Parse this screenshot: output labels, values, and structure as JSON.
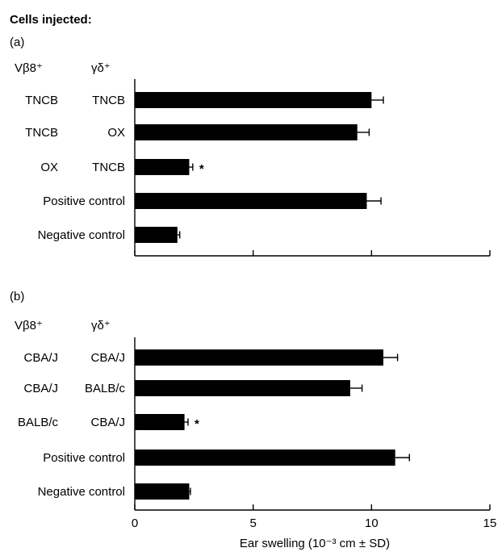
{
  "header": "Cells injected:",
  "colors": {
    "bar": "#000000",
    "axis": "#000000",
    "background": "#ffffff"
  },
  "chart_data": [
    {
      "type": "bar",
      "orientation": "horizontal",
      "panel": "(a)",
      "group_headers": [
        "Vβ8⁺",
        "γδ⁺"
      ],
      "categories": [
        [
          "TNCB",
          "TNCB"
        ],
        [
          "TNCB",
          "OX"
        ],
        [
          "OX",
          "TNCB"
        ],
        [
          "Positive control"
        ],
        [
          "Negative control"
        ]
      ],
      "values": [
        10.0,
        9.4,
        2.3,
        9.8,
        1.8
      ],
      "errors": [
        0.5,
        0.5,
        0.15,
        0.6,
        0.1
      ],
      "significance": [
        "",
        "",
        "*",
        "",
        ""
      ],
      "xlim": [
        0,
        15
      ],
      "xticks": [
        0,
        5,
        10,
        15
      ],
      "show_tick_labels": false,
      "xlabel": ""
    },
    {
      "type": "bar",
      "orientation": "horizontal",
      "panel": "(b)",
      "group_headers": [
        "Vβ8⁺",
        "γδ⁺"
      ],
      "categories": [
        [
          "CBA/J",
          "CBA/J"
        ],
        [
          "CBA/J",
          "BALB/c"
        ],
        [
          "BALB/c",
          "CBA/J"
        ],
        [
          "Positive control"
        ],
        [
          "Negative control"
        ]
      ],
      "values": [
        10.5,
        9.1,
        2.1,
        11.0,
        2.3
      ],
      "errors": [
        0.6,
        0.5,
        0.15,
        0.6,
        0.05
      ],
      "significance": [
        "",
        "",
        "*",
        "",
        ""
      ],
      "xlim": [
        0,
        15
      ],
      "xticks": [
        0,
        5,
        10,
        15
      ],
      "show_tick_labels": true,
      "tick_labels": [
        "0",
        "5",
        "10",
        "15"
      ],
      "xlabel": "Ear swelling (10⁻³ cm ± SD)"
    }
  ]
}
